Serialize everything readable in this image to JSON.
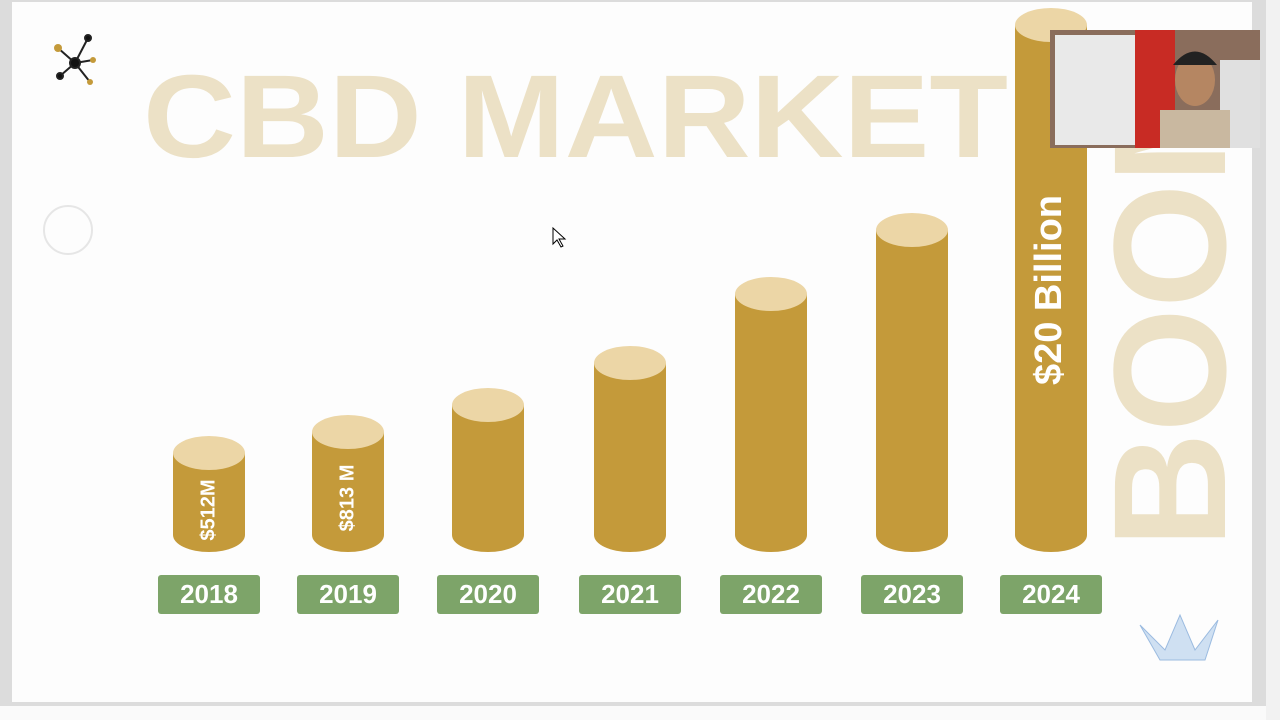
{
  "slide": {
    "title": "CBD MARKET",
    "side_text": "BOOM",
    "bars": [
      {
        "year": "2018",
        "label": "$512M"
      },
      {
        "year": "2019",
        "label": "$813 M"
      },
      {
        "year": "2020"
      },
      {
        "year": "2021"
      },
      {
        "year": "2022"
      },
      {
        "year": "2023"
      },
      {
        "year": "2024",
        "label": "$20 Billion"
      }
    ]
  }
}
